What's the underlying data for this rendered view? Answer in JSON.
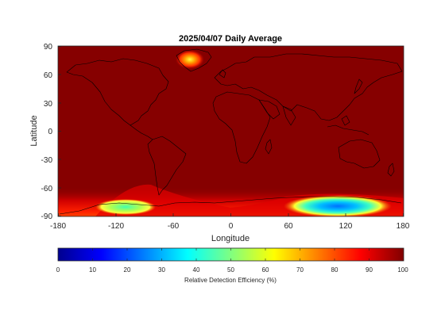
{
  "title": "2025/04/07 Daily Average",
  "map": {
    "xlabel": "Longitude",
    "ylabel": "Latitude",
    "xlim": [
      -180,
      180
    ],
    "ylim": [
      -90,
      90
    ],
    "x_ticks": [
      "-180",
      "-120",
      "-60",
      "0",
      "60",
      "120",
      "180"
    ],
    "y_ticks": [
      "90",
      "60",
      "30",
      "0",
      "-30",
      "-60",
      "-90"
    ],
    "background_level": 100,
    "regions": [
      {
        "name": "Greenland high point",
        "lon": -40,
        "lat": 74,
        "min_level": 68
      },
      {
        "name": "West Antarctic ice sheet",
        "lon": -118,
        "lat": -80,
        "min_level": 45
      },
      {
        "name": "East Antarctic plateau",
        "lon": 115,
        "lat": -79,
        "min_level": 35
      },
      {
        "name": "Antarctic coastal band",
        "lon": 0,
        "lat": -82,
        "min_level": 82
      }
    ]
  },
  "colorbar": {
    "label": "Relative Detection Efficiency (%)",
    "ticks": [
      "0",
      "10",
      "20",
      "30",
      "40",
      "50",
      "60",
      "70",
      "80",
      "90",
      "100"
    ],
    "colormap": "jet",
    "colors": [
      "#00008f",
      "#0000ff",
      "#0080ff",
      "#00ffff",
      "#80ff80",
      "#ffff00",
      "#ff8000",
      "#ff0000",
      "#800000"
    ]
  }
}
